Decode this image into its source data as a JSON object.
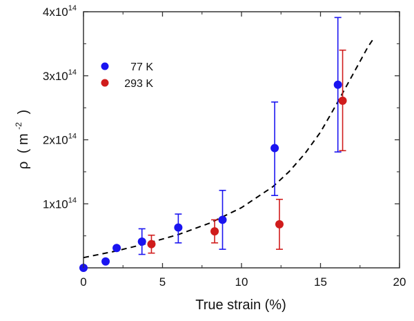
{
  "chart_data": {
    "type": "scatter",
    "title": "",
    "xlabel": "True strain (%)",
    "ylabel": "ρ (m⁻²)",
    "ylabel_parts": {
      "symbol": "ρ",
      "open": "(",
      "unit": "m",
      "exponent": "-2",
      "close": ")"
    },
    "xlim": [
      0,
      20
    ],
    "ylim": [
      0,
      400000000000000.0
    ],
    "x_ticks": [
      {
        "value": 0,
        "label": "0"
      },
      {
        "value": 5,
        "label": "5"
      },
      {
        "value": 10,
        "label": "10"
      },
      {
        "value": 15,
        "label": "15"
      },
      {
        "value": 20,
        "label": "20"
      }
    ],
    "x_minor_ticks": [
      2.5,
      7.5,
      12.5,
      17.5
    ],
    "y_ticks": [
      {
        "value": 100000000000000.0,
        "mantissa": "1x10",
        "exp": "14"
      },
      {
        "value": 200000000000000.0,
        "mantissa": "2x10",
        "exp": "14"
      },
      {
        "value": 300000000000000.0,
        "mantissa": "3x10",
        "exp": "14"
      },
      {
        "value": 400000000000000.0,
        "mantissa": "4x10",
        "exp": "14"
      }
    ],
    "y_minor_ticks": [
      50000000000000.0,
      150000000000000.0,
      250000000000000.0,
      350000000000000.0
    ],
    "grid": false,
    "legend": {
      "position": "top-left"
    },
    "series": [
      {
        "name": "77 K",
        "color": "#1a14f0",
        "points": [
          {
            "x": 0.0,
            "y": 0.0,
            "err_low": null,
            "err_high": null
          },
          {
            "x": 1.4,
            "y": 10000000000000.0,
            "err_low": null,
            "err_high": null
          },
          {
            "x": 2.1,
            "y": 31000000000000.0,
            "err_low": null,
            "err_high": null
          },
          {
            "x": 3.7,
            "y": 41000000000000.0,
            "err_low": 21000000000000.0,
            "err_high": 61000000000000.0
          },
          {
            "x": 6.0,
            "y": 63000000000000.0,
            "err_low": 39000000000000.0,
            "err_high": 84000000000000.0
          },
          {
            "x": 8.8,
            "y": 75000000000000.0,
            "err_low": 29000000000000.0,
            "err_high": 121000000000000.0
          },
          {
            "x": 12.1,
            "y": 187000000000000.0,
            "err_low": 113000000000000.0,
            "err_high": 259000000000000.0
          },
          {
            "x": 16.1,
            "y": 286000000000000.0,
            "err_low": 181000000000000.0,
            "err_high": 391000000000000.0
          }
        ]
      },
      {
        "name": "293 K",
        "color": "#d01c1c",
        "points": [
          {
            "x": 4.3,
            "y": 37000000000000.0,
            "err_low": 23000000000000.0,
            "err_high": 51000000000000.0
          },
          {
            "x": 8.3,
            "y": 57000000000000.0,
            "err_low": 39000000000000.0,
            "err_high": 75000000000000.0
          },
          {
            "x": 12.4,
            "y": 68000000000000.0,
            "err_low": 29000000000000.0,
            "err_high": 107000000000000.0
          },
          {
            "x": 16.4,
            "y": 261000000000000.0,
            "err_low": 183000000000000.0,
            "err_high": 340000000000000.0
          }
        ]
      }
    ],
    "fit_curve": {
      "style": "dashed",
      "color": "#000000",
      "x": [
        0,
        2,
        4,
        6,
        8,
        10,
        12,
        13,
        14,
        15,
        16,
        17,
        18,
        18.3
      ],
      "y": [
        16000000000000.0,
        26000000000000.0,
        38000000000000.0,
        52000000000000.0,
        70000000000000.0,
        94000000000000.0,
        127000000000000.0,
        150000000000000.0,
        178000000000000.0,
        212000000000000.0,
        255000000000000.0,
        300000000000000.0,
        345000000000000.0,
        356000000000000.0
      ]
    }
  }
}
